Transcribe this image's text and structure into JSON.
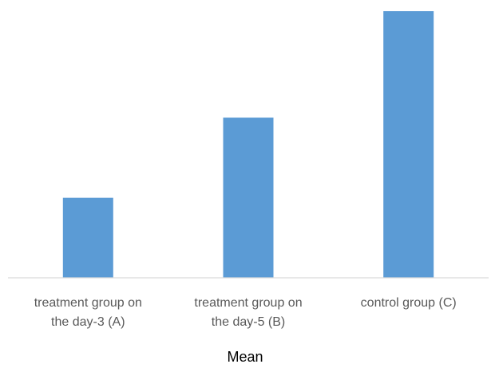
{
  "chart_data": {
    "type": "bar",
    "categories": [
      [
        "treatment group on",
        "the day-3 (A)"
      ],
      [
        "treatment group on",
        "the day-5 (B)"
      ],
      [
        "control group (C)"
      ]
    ],
    "values": [
      100,
      200,
      333
    ],
    "xlabel": "Mean",
    "ylabel": "",
    "ylim": [
      0,
      333
    ],
    "grid": false,
    "colors": {
      "bar": "#5b9bd5",
      "axis": "#d9d9d9",
      "tick_label": "#595959",
      "axis_title": "#000000"
    }
  }
}
